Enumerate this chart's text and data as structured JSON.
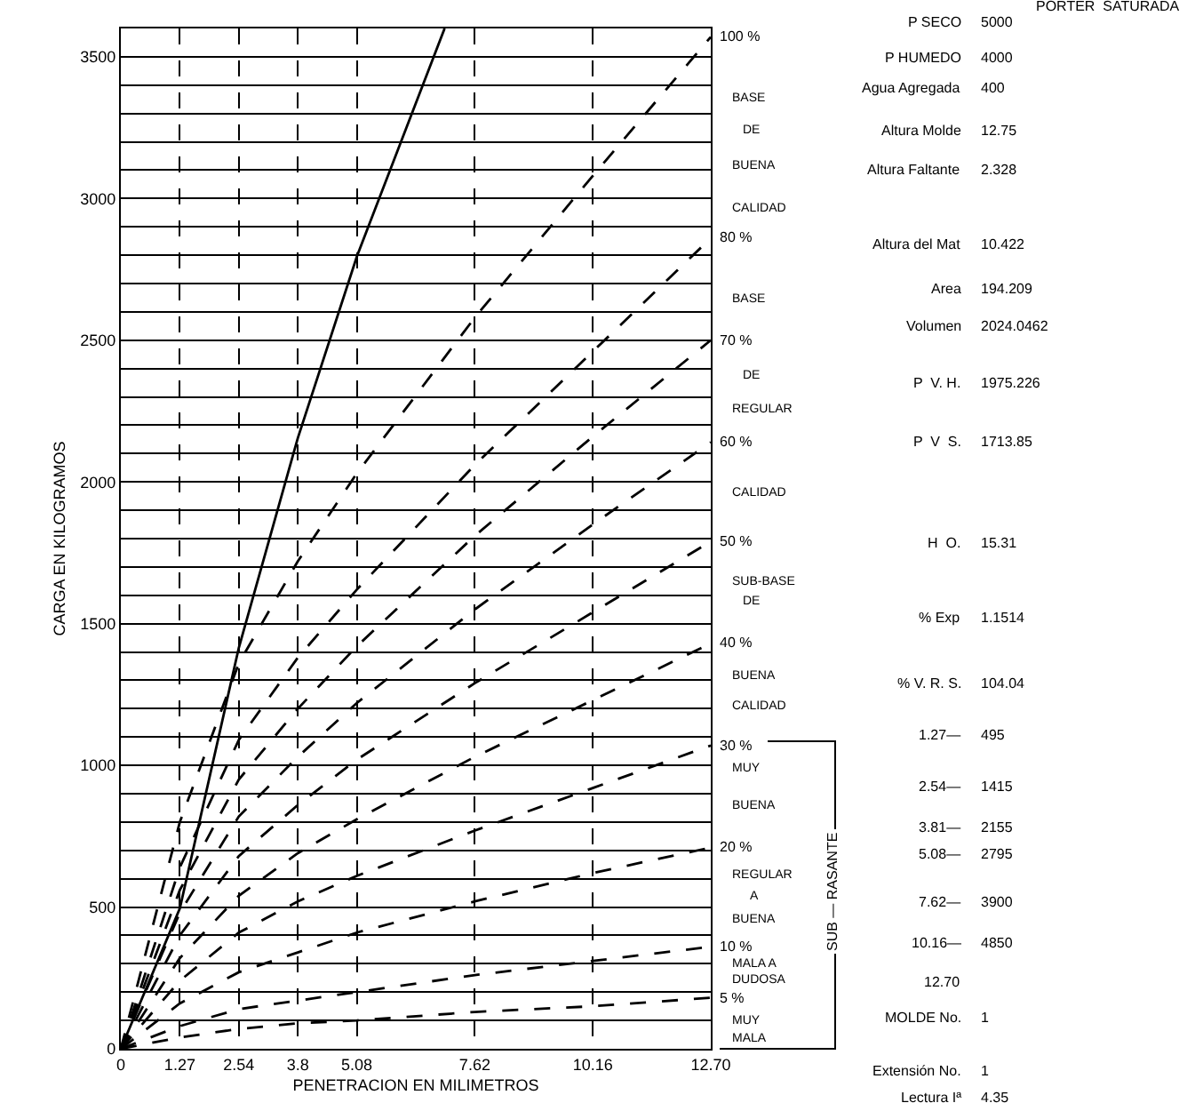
{
  "chart_data": {
    "type": "line",
    "xlabel": "PENETRACION EN MILIMETROS",
    "ylabel": "CARGA EN KILOGRAMOS",
    "x": [
      0,
      1.27,
      2.54,
      3.81,
      5.08,
      7.62,
      10.16,
      12.7
    ],
    "xlim": [
      0,
      12.7
    ],
    "xticks": [
      0,
      1.27,
      2.54,
      {
        "value": 3.81,
        "label": "3.8"
      },
      5.08,
      7.62,
      {
        "value": 10.16,
        "label": "10.16"
      },
      {
        "value": 12.7,
        "label": "12.70"
      }
    ],
    "ylim": [
      0,
      3600
    ],
    "yticks": [
      0,
      {
        "value": 100,
        "label": null
      },
      {
        "value": 200,
        "label": null
      },
      {
        "value": 300,
        "label": null
      },
      {
        "value": 400,
        "label": null
      },
      500,
      {
        "value": 600,
        "label": null
      },
      {
        "value": 700,
        "label": null
      },
      {
        "value": 800,
        "label": null
      },
      {
        "value": 900,
        "label": null
      },
      1000,
      {
        "value": 1100,
        "label": null
      },
      {
        "value": 1200,
        "label": null
      },
      {
        "value": 1300,
        "label": null
      },
      {
        "value": 1400,
        "label": null
      },
      1500,
      {
        "value": 1600,
        "label": null
      },
      {
        "value": 1700,
        "label": null
      },
      {
        "value": 1800,
        "label": null
      },
      {
        "value": 1900,
        "label": null
      },
      2000,
      {
        "value": 2100,
        "label": null
      },
      {
        "value": 2200,
        "label": null
      },
      {
        "value": 2300,
        "label": null
      },
      {
        "value": 2400,
        "label": null
      },
      2500,
      {
        "value": 2600,
        "label": null
      },
      {
        "value": 2700,
        "label": null
      },
      {
        "value": 2800,
        "label": null
      },
      {
        "value": 2900,
        "label": null
      },
      3000,
      {
        "value": 3100,
        "label": null
      },
      {
        "value": 3200,
        "label": null
      },
      {
        "value": 3300,
        "label": null
      },
      {
        "value": 3400,
        "label": null
      },
      3500,
      {
        "value": 3600,
        "label": null
      }
    ],
    "grid": true,
    "marker": "none",
    "series": [
      {
        "name": "100 %",
        "color": "#000000",
        "line_style": "dashed",
        "values": [
          0,
          800,
          1360,
          1720,
          2030,
          2580,
          3080,
          3570
        ]
      },
      {
        "name": "80 %",
        "color": "#000000",
        "line_style": "dashed",
        "values": [
          0,
          640,
          1090,
          1380,
          1620,
          2060,
          2460,
          2860
        ]
      },
      {
        "name": "70 %",
        "color": "#000000",
        "line_style": "dashed",
        "values": [
          0,
          560,
          950,
          1200,
          1420,
          1810,
          2160,
          2500
        ]
      },
      {
        "name": "60 %",
        "color": "#000000",
        "line_style": "dashed",
        "values": [
          0,
          480,
          820,
          1030,
          1220,
          1550,
          1850,
          2140
        ]
      },
      {
        "name": "50 %",
        "color": "#000000",
        "line_style": "dashed",
        "values": [
          0,
          400,
          680,
          860,
          1020,
          1290,
          1540,
          1790
        ]
      },
      {
        "name": "40 %",
        "color": "#000000",
        "line_style": "dashed",
        "values": [
          0,
          320,
          540,
          690,
          810,
          1030,
          1230,
          1430
        ]
      },
      {
        "name": "30 %",
        "color": "#000000",
        "line_style": "dashed",
        "values": [
          0,
          240,
          410,
          520,
          610,
          770,
          920,
          1070
        ]
      },
      {
        "name": "20 %",
        "color": "#000000",
        "line_style": "dashed",
        "values": [
          0,
          160,
          270,
          340,
          410,
          520,
          620,
          710
        ]
      },
      {
        "name": "10 %",
        "color": "#000000",
        "line_style": "dashed",
        "values": [
          0,
          80,
          140,
          170,
          200,
          260,
          310,
          360
        ]
      },
      {
        "name": "5 %",
        "color": "#000000",
        "line_style": "dashed",
        "values": [
          0,
          40,
          70,
          90,
          100,
          130,
          150,
          180
        ]
      },
      {
        "color": "#000000",
        "line_style": "solid",
        "x": [
          0,
          1.27,
          2.54,
          3.81,
          5.08,
          6.97
        ],
        "values": [
          0,
          495,
          1415,
          2155,
          2795,
          3600
        ]
      }
    ],
    "annotations": [
      "BASE",
      "DE",
      "BUENA",
      "CALIDAD",
      "BASE",
      "DE",
      "REGULAR",
      "CALIDAD",
      "SUB-BASE",
      "DE",
      "BUENA",
      "CALIDAD",
      "MUY",
      "BUENA",
      "REGULAR",
      "A",
      "BUENA",
      "MALA A",
      "DUDOSA",
      "MUY",
      "MALA",
      "SUB — RASANTE",
      "PORTER  SATURADA",
      "P SECO",
      "5000",
      "P HUMEDO",
      "4000",
      "Agua Agregada",
      "400",
      "Altura Molde",
      "12.75",
      "Altura Faltante",
      "2.328",
      "Altura del Mat",
      "10.422",
      "Area",
      "194.209",
      "Volumen",
      "2024.0462",
      "P  V. H.",
      "1975.226",
      "P  V  S.",
      "1713.85",
      "H  O.",
      "15.31",
      "% Exp",
      "1.1514",
      "% V. R. S.",
      "104.04",
      "1.27—",
      "495",
      "2.54—",
      "1415",
      "3.81—",
      "2155",
      "5.08—",
      "2795",
      "7.62—",
      "3900",
      "10.16—",
      "4850",
      "12.70",
      "MOLDE No.",
      "1",
      "Extensión No.",
      "1",
      "Lectura Iª",
      "4.35"
    ]
  }
}
